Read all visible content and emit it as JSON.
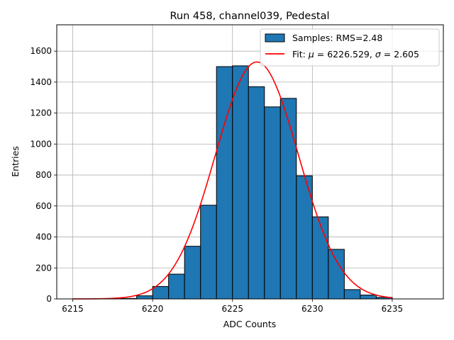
{
  "chart_data": {
    "type": "bar",
    "title": "Run 458, channel039, Pedestal",
    "xlabel": "ADC Counts",
    "ylabel": "Entries",
    "xlim": [
      6214,
      6238.2
    ],
    "ylim": [
      0,
      1770
    ],
    "xticks": [
      6215,
      6220,
      6225,
      6230,
      6235
    ],
    "yticks": [
      0,
      200,
      400,
      600,
      800,
      1000,
      1200,
      1400,
      1600
    ],
    "grid": true,
    "legend_position": "top-right",
    "bin_width": 1,
    "bins": [
      {
        "x": 6218,
        "value": 3
      },
      {
        "x": 6219,
        "value": 20
      },
      {
        "x": 6220,
        "value": 80
      },
      {
        "x": 6221,
        "value": 160
      },
      {
        "x": 6222,
        "value": 340
      },
      {
        "x": 6223,
        "value": 605
      },
      {
        "x": 6224,
        "value": 1500
      },
      {
        "x": 6225,
        "value": 1505
      },
      {
        "x": 6226,
        "value": 1370
      },
      {
        "x": 6227,
        "value": 1240
      },
      {
        "x": 6228,
        "value": 1295
      },
      {
        "x": 6229,
        "value": 795
      },
      {
        "x": 6230,
        "value": 530
      },
      {
        "x": 6231,
        "value": 320
      },
      {
        "x": 6232,
        "value": 60
      },
      {
        "x": 6233,
        "value": 25
      },
      {
        "x": 6234,
        "value": 10
      }
    ],
    "series": [
      {
        "name": "Samples: RMS=2.48",
        "kind": "histogram",
        "color": "#1f77b4"
      },
      {
        "name": "Fit: μ = 6226.529, σ = 2.605",
        "kind": "gaussian",
        "color": "#ff0000",
        "mu": 6226.529,
        "sigma": 2.605,
        "amplitude": 1530,
        "x_range": [
          6215,
          6235
        ]
      }
    ]
  },
  "legend": {
    "hist_label": "Samples: RMS=2.48",
    "fit_prefix": "Fit: ",
    "fit_mu_symbol": "μ",
    "fit_mu_value": " = 6226.529, ",
    "fit_sigma_symbol": "σ",
    "fit_sigma_value": " = 2.605"
  }
}
